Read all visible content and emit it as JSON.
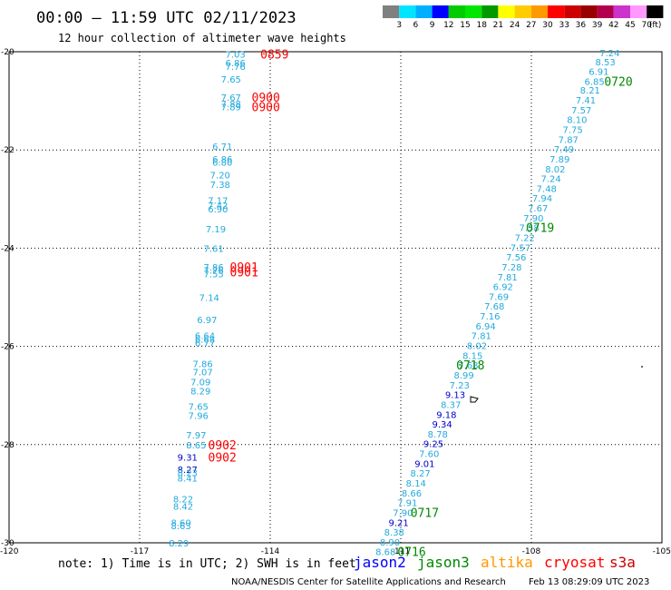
{
  "header": {
    "title": "00:00 – 11:59 UTC 02/11/2023",
    "subtitle": "12 hour collection of altimeter wave heights"
  },
  "colorbar": {
    "labels": [
      "3",
      "6",
      "9",
      "12",
      "15",
      "18",
      "21",
      "24",
      "27",
      "30",
      "33",
      "36",
      "39",
      "42",
      "45",
      "70"
    ],
    "unit": "(ft)",
    "colors": [
      "#808080",
      "#00e5ff",
      "#00b0ff",
      "#0000ff",
      "#00cc00",
      "#00e600",
      "#009900",
      "#ffff00",
      "#ffcc00",
      "#ff9900",
      "#ff0000",
      "#cc0000",
      "#990000",
      "#b3004d",
      "#cc33cc",
      "#ff99ff",
      "#000000"
    ]
  },
  "footer": {
    "note": "note:  1) Time is in UTC; 2) SWH is in feet",
    "legend": [
      {
        "name": "jason2",
        "color": "#0000ff"
      },
      {
        "name": "jason3",
        "color": "#008800"
      },
      {
        "name": "altika",
        "color": "#ff9900"
      },
      {
        "name": "cryosat",
        "color": "#ff0000"
      },
      {
        "name": "s3a",
        "color": "#cc0000"
      }
    ],
    "credit": "NOAA/NESDIS Center for Satellite Applications and Research",
    "timestamp": "Feb 13 08:29:09 UTC 2023"
  },
  "chart_data": {
    "type": "scatter",
    "xlim": [
      -120,
      -105
    ],
    "ylim": [
      -30,
      -20
    ],
    "x_ticks": [
      -120,
      -117,
      -114,
      -111,
      -108,
      -105
    ],
    "y_ticks": [
      -20,
      -22,
      -24,
      -26,
      -28,
      -30
    ],
    "x_tick_labels": [
      "-120",
      "-117",
      "-114",
      "-111",
      "-108",
      "-105"
    ],
    "y_tick_labels": [
      "-20",
      "-22",
      "-24",
      "-26",
      "-28",
      "-30"
    ],
    "grid": true,
    "colors": {
      "cyan": "#22aadd",
      "blue": "#0000cc",
      "red": "#ff0000",
      "green": "#008800"
    },
    "points": [
      {
        "x": -114.8,
        "y": -20.05,
        "label": "7.03",
        "color": "cyan"
      },
      {
        "x": -114.8,
        "y": -20.22,
        "label": "6.86",
        "color": "cyan"
      },
      {
        "x": -114.8,
        "y": -20.3,
        "label": "7.76",
        "color": "cyan"
      },
      {
        "x": -114.9,
        "y": -20.55,
        "label": "7.65",
        "color": "cyan"
      },
      {
        "x": -114.9,
        "y": -20.92,
        "label": "7.67",
        "color": "cyan"
      },
      {
        "x": -114.9,
        "y": -21.05,
        "label": "7.88",
        "color": "cyan"
      },
      {
        "x": -114.9,
        "y": -21.12,
        "label": "7.89",
        "color": "cyan"
      },
      {
        "x": -115.1,
        "y": -21.92,
        "label": "6.71",
        "color": "cyan"
      },
      {
        "x": -115.1,
        "y": -22.18,
        "label": "6.86",
        "color": "cyan"
      },
      {
        "x": -115.1,
        "y": -22.25,
        "label": "6.80",
        "color": "cyan"
      },
      {
        "x": -115.15,
        "y": -22.5,
        "label": "7.20",
        "color": "cyan"
      },
      {
        "x": -115.15,
        "y": -22.7,
        "label": "7.38",
        "color": "cyan"
      },
      {
        "x": -115.2,
        "y": -23.02,
        "label": "7.17",
        "color": "cyan"
      },
      {
        "x": -115.2,
        "y": -23.12,
        "label": "7.42",
        "color": "cyan"
      },
      {
        "x": -115.2,
        "y": -23.2,
        "label": "6.90",
        "color": "cyan"
      },
      {
        "x": -115.25,
        "y": -23.6,
        "label": "7.19",
        "color": "cyan"
      },
      {
        "x": -115.3,
        "y": -24.0,
        "label": "7.61",
        "color": "cyan"
      },
      {
        "x": -115.3,
        "y": -24.38,
        "label": "7.86",
        "color": "cyan"
      },
      {
        "x": -115.3,
        "y": -24.45,
        "label": "7.76",
        "color": "cyan"
      },
      {
        "x": -115.3,
        "y": -24.52,
        "label": "7.55",
        "color": "cyan"
      },
      {
        "x": -115.4,
        "y": -25.0,
        "label": "7.14",
        "color": "cyan"
      },
      {
        "x": -115.45,
        "y": -25.45,
        "label": "6.97",
        "color": "cyan"
      },
      {
        "x": -115.5,
        "y": -25.78,
        "label": "6.64",
        "color": "cyan"
      },
      {
        "x": -115.5,
        "y": -25.85,
        "label": "6.68",
        "color": "cyan"
      },
      {
        "x": -115.5,
        "y": -25.92,
        "label": "6.77",
        "color": "cyan"
      },
      {
        "x": -115.55,
        "y": -26.35,
        "label": "7.86",
        "color": "cyan"
      },
      {
        "x": -115.55,
        "y": -26.52,
        "label": "7.07",
        "color": "cyan"
      },
      {
        "x": -115.6,
        "y": -26.72,
        "label": "7.09",
        "color": "cyan"
      },
      {
        "x": -115.6,
        "y": -26.9,
        "label": "8.29",
        "color": "cyan"
      },
      {
        "x": -115.65,
        "y": -27.22,
        "label": "7.65",
        "color": "cyan"
      },
      {
        "x": -115.65,
        "y": -27.4,
        "label": "7.96",
        "color": "cyan"
      },
      {
        "x": -115.7,
        "y": -27.8,
        "label": "7.97",
        "color": "cyan"
      },
      {
        "x": -115.7,
        "y": -28.0,
        "label": "8.65",
        "color": "cyan"
      },
      {
        "x": -115.9,
        "y": -28.25,
        "label": "9.31",
        "color": "blue"
      },
      {
        "x": -115.9,
        "y": -28.5,
        "label": "8.27",
        "color": "blue"
      },
      {
        "x": -115.9,
        "y": -28.57,
        "label": "8.23",
        "color": "cyan"
      },
      {
        "x": -115.9,
        "y": -28.68,
        "label": "8.41",
        "color": "cyan"
      },
      {
        "x": -116.0,
        "y": -29.1,
        "label": "8.22",
        "color": "cyan"
      },
      {
        "x": -116.0,
        "y": -29.25,
        "label": "8.42",
        "color": "cyan"
      },
      {
        "x": -116.05,
        "y": -29.58,
        "label": "8.60",
        "color": "cyan"
      },
      {
        "x": -116.05,
        "y": -29.65,
        "label": "8.63",
        "color": "cyan"
      },
      {
        "x": -116.1,
        "y": -30.0,
        "label": "8.29",
        "color": "cyan"
      },
      {
        "x": -106.2,
        "y": -20.02,
        "label": "7.24",
        "color": "cyan"
      },
      {
        "x": -106.3,
        "y": -20.2,
        "label": "8.53",
        "color": "cyan"
      },
      {
        "x": -106.45,
        "y": -20.4,
        "label": "6.91",
        "color": "cyan"
      },
      {
        "x": -106.55,
        "y": -20.6,
        "label": "6.85",
        "color": "cyan"
      },
      {
        "x": -106.65,
        "y": -20.78,
        "label": "8.21",
        "color": "cyan"
      },
      {
        "x": -106.75,
        "y": -20.98,
        "label": "7.41",
        "color": "cyan"
      },
      {
        "x": -106.85,
        "y": -21.18,
        "label": "7.57",
        "color": "cyan"
      },
      {
        "x": -106.95,
        "y": -21.38,
        "label": "8.10",
        "color": "cyan"
      },
      {
        "x": -107.05,
        "y": -21.58,
        "label": "7.75",
        "color": "cyan"
      },
      {
        "x": -107.15,
        "y": -21.78,
        "label": "7.87",
        "color": "cyan"
      },
      {
        "x": -107.25,
        "y": -21.98,
        "label": "7.49",
        "color": "cyan"
      },
      {
        "x": -107.35,
        "y": -22.18,
        "label": "7.89",
        "color": "cyan"
      },
      {
        "x": -107.45,
        "y": -22.38,
        "label": "8.02",
        "color": "cyan"
      },
      {
        "x": -107.55,
        "y": -22.58,
        "label": "7.24",
        "color": "cyan"
      },
      {
        "x": -107.65,
        "y": -22.78,
        "label": "7.48",
        "color": "cyan"
      },
      {
        "x": -107.75,
        "y": -22.98,
        "label": "7.94",
        "color": "cyan"
      },
      {
        "x": -107.85,
        "y": -23.18,
        "label": "7.67",
        "color": "cyan"
      },
      {
        "x": -107.95,
        "y": -23.38,
        "label": "7.90",
        "color": "cyan"
      },
      {
        "x": -108.05,
        "y": -23.58,
        "label": "7.58",
        "color": "cyan"
      },
      {
        "x": -108.15,
        "y": -23.78,
        "label": "7.22",
        "color": "cyan"
      },
      {
        "x": -108.25,
        "y": -23.98,
        "label": "7.57",
        "color": "cyan"
      },
      {
        "x": -108.35,
        "y": -24.18,
        "label": "7.56",
        "color": "cyan"
      },
      {
        "x": -108.45,
        "y": -24.38,
        "label": "7.28",
        "color": "cyan"
      },
      {
        "x": -108.55,
        "y": -24.58,
        "label": "7.81",
        "color": "cyan"
      },
      {
        "x": -108.65,
        "y": -24.78,
        "label": "6.92",
        "color": "cyan"
      },
      {
        "x": -108.75,
        "y": -24.98,
        "label": "7.69",
        "color": "cyan"
      },
      {
        "x": -108.85,
        "y": -25.18,
        "label": "7.68",
        "color": "cyan"
      },
      {
        "x": -108.95,
        "y": -25.38,
        "label": "7.16",
        "color": "cyan"
      },
      {
        "x": -109.05,
        "y": -25.58,
        "label": "6.94",
        "color": "cyan"
      },
      {
        "x": -109.15,
        "y": -25.78,
        "label": "7.81",
        "color": "cyan"
      },
      {
        "x": -109.25,
        "y": -25.98,
        "label": "8.02",
        "color": "cyan"
      },
      {
        "x": -109.35,
        "y": -26.18,
        "label": "8.15",
        "color": "cyan"
      },
      {
        "x": -109.45,
        "y": -26.38,
        "label": "7.68",
        "color": "cyan"
      },
      {
        "x": -109.55,
        "y": -26.58,
        "label": "8.99",
        "color": "cyan"
      },
      {
        "x": -109.65,
        "y": -26.78,
        "label": "7.23",
        "color": "cyan"
      },
      {
        "x": -109.75,
        "y": -26.98,
        "label": "9.13",
        "color": "blue"
      },
      {
        "x": -109.85,
        "y": -27.18,
        "label": "8.37",
        "color": "cyan"
      },
      {
        "x": -109.95,
        "y": -27.38,
        "label": "9.18",
        "color": "blue"
      },
      {
        "x": -110.05,
        "y": -27.58,
        "label": "9.34",
        "color": "blue"
      },
      {
        "x": -110.15,
        "y": -27.78,
        "label": "8.78",
        "color": "cyan"
      },
      {
        "x": -110.25,
        "y": -27.98,
        "label": "9.25",
        "color": "blue"
      },
      {
        "x": -110.35,
        "y": -28.18,
        "label": "7.60",
        "color": "cyan"
      },
      {
        "x": -110.45,
        "y": -28.38,
        "label": "9.01",
        "color": "blue"
      },
      {
        "x": -110.55,
        "y": -28.58,
        "label": "8.27",
        "color": "cyan"
      },
      {
        "x": -110.65,
        "y": -28.78,
        "label": "8.14",
        "color": "cyan"
      },
      {
        "x": -110.75,
        "y": -28.98,
        "label": "8.66",
        "color": "cyan"
      },
      {
        "x": -110.85,
        "y": -29.18,
        "label": "7.91",
        "color": "cyan"
      },
      {
        "x": -110.95,
        "y": -29.38,
        "label": "7.90",
        "color": "cyan"
      },
      {
        "x": -111.05,
        "y": -29.58,
        "label": "9.21",
        "color": "blue"
      },
      {
        "x": -111.15,
        "y": -29.78,
        "label": "8.38",
        "color": "cyan"
      },
      {
        "x": -111.25,
        "y": -29.98,
        "label": "8.90",
        "color": "cyan"
      },
      {
        "x": -111.35,
        "y": -30.18,
        "label": "8.68",
        "color": "cyan"
      }
    ],
    "time_labels": [
      {
        "x": -113.9,
        "y": -20.05,
        "label": "0859",
        "color": "red"
      },
      {
        "x": -114.1,
        "y": -20.92,
        "label": "0900",
        "color": "red"
      },
      {
        "x": -114.1,
        "y": -21.12,
        "label": "0900",
        "color": "red"
      },
      {
        "x": -114.6,
        "y": -24.38,
        "label": "0901",
        "color": "red"
      },
      {
        "x": -114.6,
        "y": -24.48,
        "label": "0901",
        "color": "red"
      },
      {
        "x": -115.1,
        "y": -28.0,
        "label": "0902",
        "color": "red"
      },
      {
        "x": -115.1,
        "y": -28.25,
        "label": "0902",
        "color": "red"
      },
      {
        "x": -106.0,
        "y": -20.6,
        "label": "0720",
        "color": "green"
      },
      {
        "x": -107.8,
        "y": -23.58,
        "label": "0719",
        "color": "green"
      },
      {
        "x": -109.4,
        "y": -26.38,
        "label": "0718",
        "color": "green"
      },
      {
        "x": -110.45,
        "y": -29.38,
        "label": "0717",
        "color": "green"
      },
      {
        "x": -110.75,
        "y": -30.18,
        "label": "0716",
        "color": "green"
      }
    ]
  }
}
